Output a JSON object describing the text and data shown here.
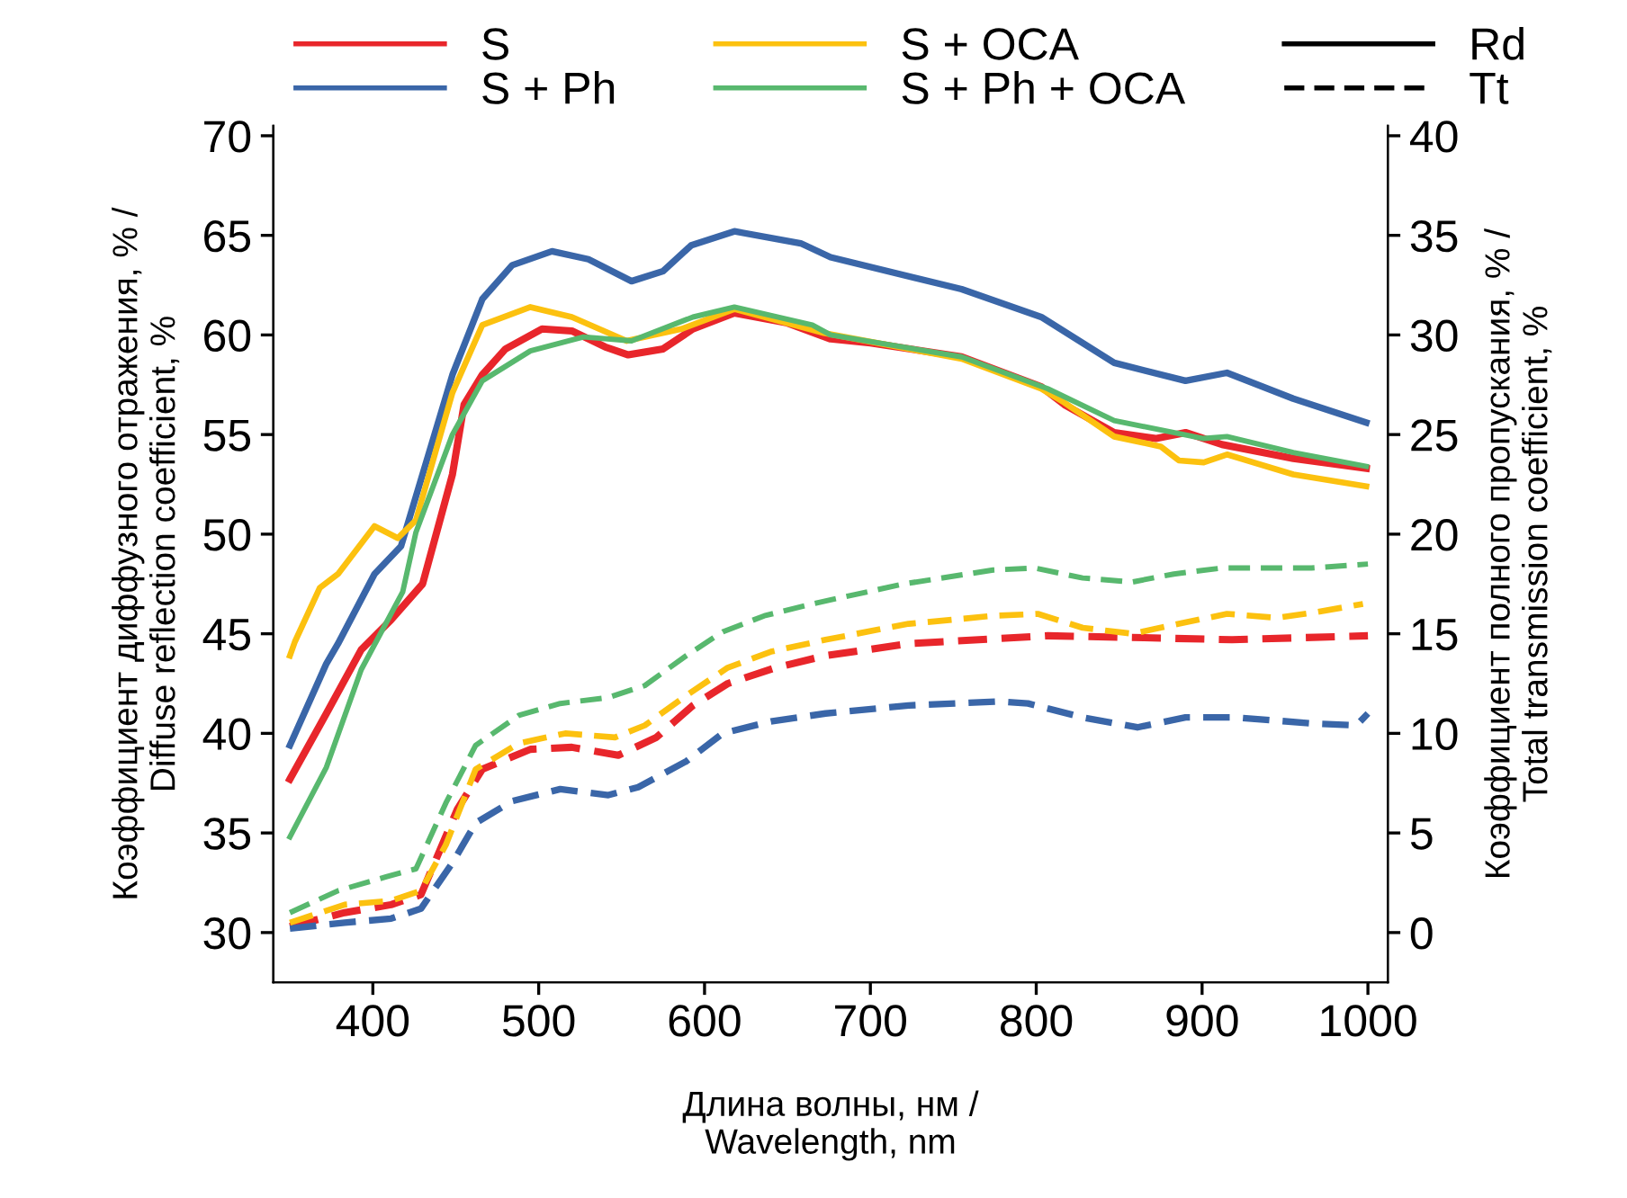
{
  "chart_data": {
    "type": "line",
    "xlabel": "Длина волны, нм /\nWavelength, nm",
    "ylabel": "Коэффициент диффузного отражения, % /\nDiffuse reflection coefficient, %",
    "y2label": "Коэффициент полного пропускания, % /\nTotal transmission coefficient, %",
    "xlim": [
      340,
      1012
    ],
    "xticks": [
      400,
      500,
      600,
      700,
      800,
      900,
      1000
    ],
    "ylim": [
      27.5,
      70.5
    ],
    "yticks": [
      30,
      35,
      40,
      45,
      50,
      55,
      60,
      65,
      70
    ],
    "y2lim": [
      -2.5,
      40.5
    ],
    "y2ticks": [
      0,
      5,
      10,
      15,
      20,
      25,
      30,
      35,
      40
    ],
    "grid": false,
    "legend": "top",
    "annotations": [
      "Rd",
      "Tt"
    ],
    "series": [
      {
        "name": "S",
        "color": "#e8262b",
        "line_style": "solid",
        "x": [
          350,
          372,
          393,
          411,
          430,
          448,
          455,
          466,
          480,
          502,
          520,
          540,
          554,
          575,
          593,
          618,
          650,
          676,
          700,
          755,
          803,
          817,
          847,
          872,
          890,
          912,
          955,
          999
        ],
        "values": [
          37.7,
          41,
          44.2,
          45.7,
          47.5,
          53,
          56.5,
          58,
          59.3,
          60.3,
          60.2,
          59.4,
          59.0,
          59.3,
          60.3,
          61.1,
          60.6,
          59.8,
          59.6,
          58.9,
          57.4,
          56.5,
          55.1,
          54.8,
          55.1,
          54.5,
          53.8,
          53.3
        ]
      },
      {
        "name": "S + Ph",
        "color": "#3a66a8",
        "line_style": "solid",
        "x": [
          350,
          372,
          379,
          401,
          417,
          448,
          466,
          484,
          508,
          530,
          556,
          575,
          592,
          618,
          658,
          676,
          755,
          803,
          847,
          890,
          915,
          955,
          999
        ],
        "values": [
          39.4,
          43.5,
          44.5,
          48,
          49.4,
          58,
          61.8,
          63.5,
          64.2,
          63.8,
          62.7,
          63.2,
          64.5,
          65.2,
          64.6,
          63.9,
          62.3,
          60.9,
          58.6,
          57.7,
          58.1,
          56.8,
          55.6
        ]
      },
      {
        "name": "S + OCA",
        "color": "#fcc10f",
        "line_style": "solid",
        "x": [
          350,
          353,
          368,
          379,
          401,
          415,
          426,
          448,
          466,
          495,
          520,
          553,
          586,
          618,
          672,
          755,
          803,
          817,
          847,
          875,
          886,
          901,
          915,
          955,
          999
        ],
        "values": [
          43.9,
          44.6,
          47.3,
          48,
          50.4,
          49.8,
          50.7,
          57.1,
          60.5,
          61.4,
          60.9,
          59.7,
          60.3,
          61.3,
          60.1,
          58.8,
          57.3,
          56.6,
          54.9,
          54.4,
          53.7,
          53.6,
          54,
          53.0,
          52.4
        ]
      },
      {
        "name": "S + Ph + OCA",
        "color": "#58b86e",
        "line_style": "solid",
        "x": [
          350,
          372,
          393,
          418,
          426,
          448,
          466,
          495,
          527,
          556,
          593,
          618,
          665,
          676,
          755,
          807,
          847,
          901,
          915,
          955,
          999
        ],
        "values": [
          34.8,
          38.3,
          43.2,
          47.1,
          50.1,
          55,
          57.7,
          59.2,
          59.9,
          59.7,
          60.9,
          61.4,
          60.5,
          60,
          58.9,
          57.3,
          55.7,
          54.8,
          54.9,
          54.1,
          53.4
        ]
      },
      {
        "color": "#e8262b",
        "line_style": "dashed",
        "axis": "y2",
        "x": [
          350,
          383,
          411,
          429,
          451,
          466,
          495,
          520,
          548,
          571,
          593,
          614,
          643,
          673,
          723,
          807,
          865,
          918,
          1000
        ],
        "values": [
          0.3,
          1.0,
          1.4,
          1.9,
          6.2,
          8.2,
          9.2,
          9.3,
          8.9,
          9.8,
          11.4,
          12.5,
          13.3,
          13.9,
          14.5,
          14.9,
          14.8,
          14.7,
          14.9
        ]
      },
      {
        "color": "#3a66a8",
        "line_style": "dashed",
        "axis": "y2",
        "x": [
          350,
          383,
          411,
          429,
          448,
          462,
          484,
          513,
          542,
          560,
          589,
          611,
          640,
          673,
          723,
          777,
          795,
          828,
          861,
          890,
          920,
          966,
          993,
          1000
        ],
        "values": [
          0.2,
          0.5,
          0.7,
          1.2,
          3.5,
          5.5,
          6.6,
          7.2,
          6.9,
          7.3,
          8.6,
          10.0,
          10.6,
          11.0,
          11.4,
          11.6,
          11.5,
          10.8,
          10.3,
          10.8,
          10.8,
          10.5,
          10.4,
          11.0
        ]
      },
      {
        "color": "#fcc10f",
        "line_style": "dashed",
        "axis": "y2",
        "x": [
          350,
          383,
          411,
          429,
          444,
          462,
          488,
          516,
          546,
          564,
          589,
          614,
          640,
          673,
          723,
          774,
          801,
          828,
          858,
          886,
          915,
          945,
          970,
          997
        ],
        "values": [
          0.5,
          1.4,
          1.6,
          2.1,
          4.4,
          8.2,
          9.5,
          10.0,
          9.8,
          10.4,
          11.9,
          13.3,
          14.1,
          14.7,
          15.5,
          15.9,
          16.0,
          15.3,
          15.0,
          15.5,
          16.0,
          15.8,
          16.1,
          16.5
        ]
      },
      {
        "color": "#58b86e",
        "line_style": "dashed",
        "axis": "y2",
        "x": [
          350,
          379,
          408,
          426,
          444,
          462,
          488,
          513,
          542,
          564,
          589,
          611,
          636,
          665,
          720,
          774,
          799,
          828,
          858,
          883,
          912,
          966,
          1000
        ],
        "values": [
          1.0,
          2.1,
          2.8,
          3.2,
          6.5,
          9.4,
          10.9,
          11.5,
          11.8,
          12.4,
          13.9,
          15.1,
          15.9,
          16.5,
          17.5,
          18.2,
          18.3,
          17.8,
          17.6,
          18.0,
          18.3,
          18.3,
          18.5
        ]
      }
    ]
  }
}
